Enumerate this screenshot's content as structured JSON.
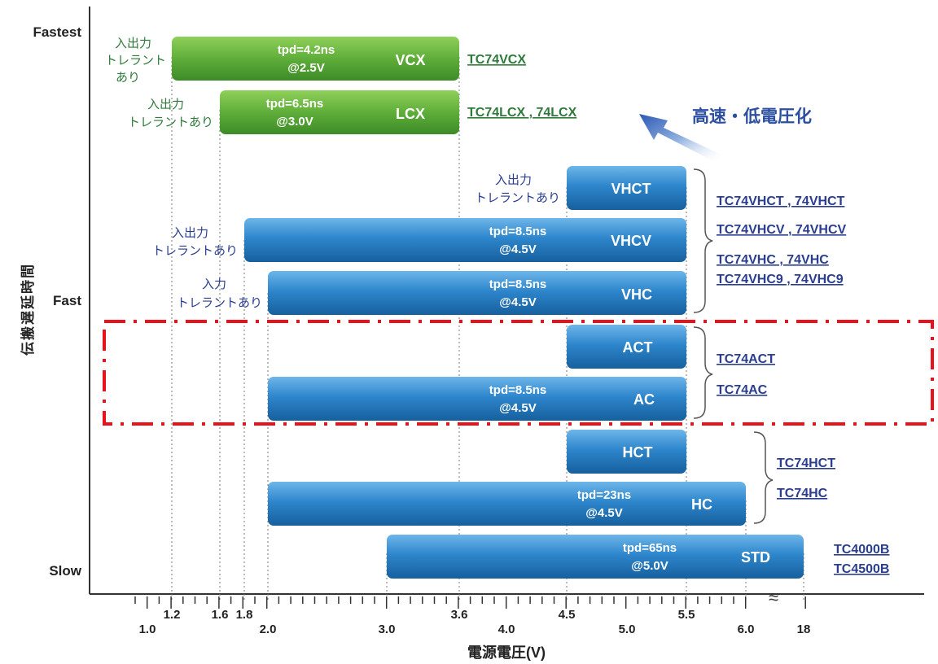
{
  "chart_data": {
    "type": "bar",
    "orientation": "horizontal-range",
    "xlabel": "電源電圧(V)",
    "ylabel": "伝搬遅延時間",
    "x_ticks": [
      "1.0",
      "1.2",
      "1.6",
      "1.8",
      "2.0",
      "3.0",
      "3.6",
      "4.0",
      "4.5",
      "5.0",
      "5.5",
      "6.0",
      "18"
    ],
    "y_levels": [
      "Fastest",
      "Fast",
      "Slow"
    ],
    "arrow_label": "高速・低電圧化",
    "highlight": {
      "label": "AC/ACT",
      "style": "red dash-dot box"
    },
    "colors": {
      "green_bar": "#5fae3a",
      "blue_bar": "#2e86cc",
      "link_blue": "#2a3d8f",
      "link_green": "#2f7a3a",
      "highlight_red": "#e8121b"
    },
    "series": [
      {
        "name": "VCX",
        "x_start": 1.2,
        "x_end": 3.6,
        "tpd": "tpd=4.2ns",
        "cond": "@2.5V",
        "tolerance": [
          "入出力",
          "トレラント",
          "あり"
        ],
        "parts": "TC74VCX",
        "color": "green"
      },
      {
        "name": "LCX",
        "x_start": 1.6,
        "x_end": 3.6,
        "tpd": "tpd=6.5ns",
        "cond": "@3.0V",
        "tolerance": [
          "入出力",
          "トレラントあり"
        ],
        "parts": "TC74LCX , 74LCX",
        "color": "green"
      },
      {
        "name": "VHCT",
        "x_start": 4.5,
        "x_end": 5.5,
        "tpd": "",
        "cond": "",
        "tolerance": [
          "入出力",
          "トレラントあり"
        ],
        "parts": "TC74VHCT , 74VHCT",
        "color": "blue"
      },
      {
        "name": "VHCV",
        "x_start": 1.8,
        "x_end": 5.5,
        "tpd": "tpd=8.5ns",
        "cond": "@4.5V",
        "tolerance": [
          "入出力",
          "トレラントあり"
        ],
        "parts": "TC74VHCV , 74VHCV",
        "color": "blue"
      },
      {
        "name": "VHC",
        "x_start": 2.0,
        "x_end": 5.5,
        "tpd": "tpd=8.5ns",
        "cond": "@4.5V",
        "tolerance": [
          "入力",
          "トレラントあり"
        ],
        "parts": "TC74VHC , 74VHC / TC74VHC9 , 74VHC9",
        "color": "blue"
      },
      {
        "name": "ACT",
        "x_start": 4.5,
        "x_end": 5.5,
        "tpd": "",
        "cond": "",
        "tolerance": [],
        "parts": "TC74ACT",
        "color": "blue"
      },
      {
        "name": "AC",
        "x_start": 2.0,
        "x_end": 5.5,
        "tpd": "tpd=8.5ns",
        "cond": "@4.5V",
        "tolerance": [],
        "parts": "TC74AC",
        "color": "blue"
      },
      {
        "name": "HCT",
        "x_start": 4.5,
        "x_end": 5.5,
        "tpd": "",
        "cond": "",
        "tolerance": [],
        "parts": "TC74HCT",
        "color": "blue"
      },
      {
        "name": "HC",
        "x_start": 2.0,
        "x_end": 6.0,
        "tpd": "tpd=23ns",
        "cond": "@4.5V",
        "tolerance": [],
        "parts": "TC74HC",
        "color": "blue"
      },
      {
        "name": "STD",
        "x_start": 3.0,
        "x_end": 18,
        "tpd": "tpd=65ns",
        "cond": "@5.0V",
        "tolerance": [],
        "parts": "TC4000B / TC4500B",
        "color": "blue"
      }
    ]
  },
  "labels": {
    "vcx_tol_1": "入出力",
    "vcx_tol_2": "トレラント",
    "vcx_tol_3": "あり",
    "lcx_tol_1": "入出力",
    "lcx_tol_2": "トレラントあり",
    "vhct_tol_1": "入出力",
    "vhct_tol_2": "トレラントあり",
    "vhcv_tol_1": "入出力",
    "vhcv_tol_2": "トレラントあり",
    "vhc_tol_1": "入力",
    "vhc_tol_2": "トレラントあり",
    "link_vcx": "TC74VCX",
    "link_lcx": "TC74LCX , 74LCX",
    "link_vhct": "TC74VHCT , 74VHCT",
    "link_vhcv": "TC74VHCV , 74VHCV",
    "link_vhc": "TC74VHC , 74VHC",
    "link_vhc9": "TC74VHC9 , 74VHC9",
    "link_act": "TC74ACT",
    "link_ac": "TC74AC",
    "link_hct": "TC74HCT",
    "link_hc": "TC74HC",
    "link_4000": "TC4000B",
    "link_4500": "TC4500B",
    "break_mark": "≈"
  }
}
